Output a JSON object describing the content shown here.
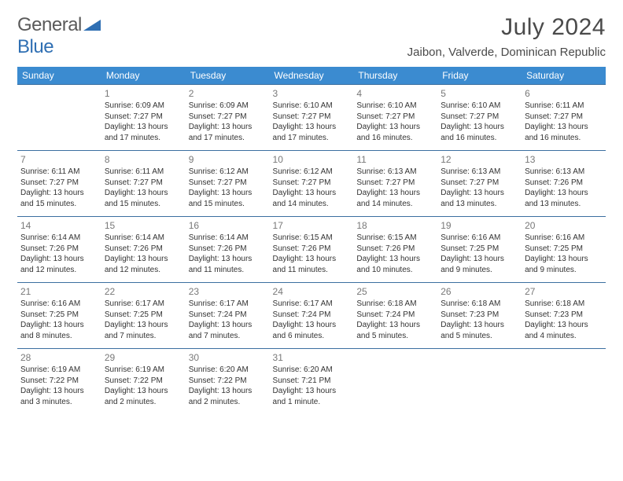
{
  "logo": {
    "word1": "General",
    "word2": "Blue"
  },
  "title": "July 2024",
  "location": "Jaibon, Valverde, Dominican Republic",
  "colors": {
    "header_bg": "#3b8bd0",
    "header_text": "#ffffff",
    "cell_border": "#3b6fa0",
    "daynum": "#787878",
    "body_text": "#333333",
    "logo_gray": "#5a5a5a",
    "logo_blue": "#2f6fb3"
  },
  "day_headers": [
    "Sunday",
    "Monday",
    "Tuesday",
    "Wednesday",
    "Thursday",
    "Friday",
    "Saturday"
  ],
  "weeks": [
    [
      null,
      {
        "n": "1",
        "sr": "6:09 AM",
        "ss": "7:27 PM",
        "dl": "13 hours and 17 minutes."
      },
      {
        "n": "2",
        "sr": "6:09 AM",
        "ss": "7:27 PM",
        "dl": "13 hours and 17 minutes."
      },
      {
        "n": "3",
        "sr": "6:10 AM",
        "ss": "7:27 PM",
        "dl": "13 hours and 17 minutes."
      },
      {
        "n": "4",
        "sr": "6:10 AM",
        "ss": "7:27 PM",
        "dl": "13 hours and 16 minutes."
      },
      {
        "n": "5",
        "sr": "6:10 AM",
        "ss": "7:27 PM",
        "dl": "13 hours and 16 minutes."
      },
      {
        "n": "6",
        "sr": "6:11 AM",
        "ss": "7:27 PM",
        "dl": "13 hours and 16 minutes."
      }
    ],
    [
      {
        "n": "7",
        "sr": "6:11 AM",
        "ss": "7:27 PM",
        "dl": "13 hours and 15 minutes."
      },
      {
        "n": "8",
        "sr": "6:11 AM",
        "ss": "7:27 PM",
        "dl": "13 hours and 15 minutes."
      },
      {
        "n": "9",
        "sr": "6:12 AM",
        "ss": "7:27 PM",
        "dl": "13 hours and 15 minutes."
      },
      {
        "n": "10",
        "sr": "6:12 AM",
        "ss": "7:27 PM",
        "dl": "13 hours and 14 minutes."
      },
      {
        "n": "11",
        "sr": "6:13 AM",
        "ss": "7:27 PM",
        "dl": "13 hours and 14 minutes."
      },
      {
        "n": "12",
        "sr": "6:13 AM",
        "ss": "7:27 PM",
        "dl": "13 hours and 13 minutes."
      },
      {
        "n": "13",
        "sr": "6:13 AM",
        "ss": "7:26 PM",
        "dl": "13 hours and 13 minutes."
      }
    ],
    [
      {
        "n": "14",
        "sr": "6:14 AM",
        "ss": "7:26 PM",
        "dl": "13 hours and 12 minutes."
      },
      {
        "n": "15",
        "sr": "6:14 AM",
        "ss": "7:26 PM",
        "dl": "13 hours and 12 minutes."
      },
      {
        "n": "16",
        "sr": "6:14 AM",
        "ss": "7:26 PM",
        "dl": "13 hours and 11 minutes."
      },
      {
        "n": "17",
        "sr": "6:15 AM",
        "ss": "7:26 PM",
        "dl": "13 hours and 11 minutes."
      },
      {
        "n": "18",
        "sr": "6:15 AM",
        "ss": "7:26 PM",
        "dl": "13 hours and 10 minutes."
      },
      {
        "n": "19",
        "sr": "6:16 AM",
        "ss": "7:25 PM",
        "dl": "13 hours and 9 minutes."
      },
      {
        "n": "20",
        "sr": "6:16 AM",
        "ss": "7:25 PM",
        "dl": "13 hours and 9 minutes."
      }
    ],
    [
      {
        "n": "21",
        "sr": "6:16 AM",
        "ss": "7:25 PM",
        "dl": "13 hours and 8 minutes."
      },
      {
        "n": "22",
        "sr": "6:17 AM",
        "ss": "7:25 PM",
        "dl": "13 hours and 7 minutes."
      },
      {
        "n": "23",
        "sr": "6:17 AM",
        "ss": "7:24 PM",
        "dl": "13 hours and 7 minutes."
      },
      {
        "n": "24",
        "sr": "6:17 AM",
        "ss": "7:24 PM",
        "dl": "13 hours and 6 minutes."
      },
      {
        "n": "25",
        "sr": "6:18 AM",
        "ss": "7:24 PM",
        "dl": "13 hours and 5 minutes."
      },
      {
        "n": "26",
        "sr": "6:18 AM",
        "ss": "7:23 PM",
        "dl": "13 hours and 5 minutes."
      },
      {
        "n": "27",
        "sr": "6:18 AM",
        "ss": "7:23 PM",
        "dl": "13 hours and 4 minutes."
      }
    ],
    [
      {
        "n": "28",
        "sr": "6:19 AM",
        "ss": "7:22 PM",
        "dl": "13 hours and 3 minutes."
      },
      {
        "n": "29",
        "sr": "6:19 AM",
        "ss": "7:22 PM",
        "dl": "13 hours and 2 minutes."
      },
      {
        "n": "30",
        "sr": "6:20 AM",
        "ss": "7:22 PM",
        "dl": "13 hours and 2 minutes."
      },
      {
        "n": "31",
        "sr": "6:20 AM",
        "ss": "7:21 PM",
        "dl": "13 hours and 1 minute."
      },
      null,
      null,
      null
    ]
  ],
  "labels": {
    "sunrise": "Sunrise:",
    "sunset": "Sunset:",
    "daylight": "Daylight:"
  }
}
